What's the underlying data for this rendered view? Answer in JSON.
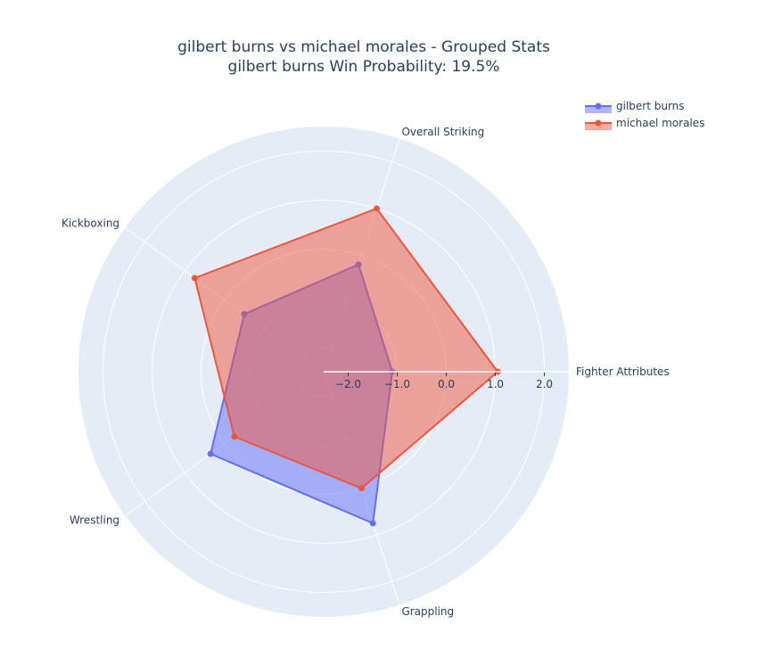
{
  "chart_data": {
    "type": "radar",
    "title_line1": "gilbert burns vs michael morales - Grouped Stats",
    "title_line2": "gilbert burns Win Probability: 19.5%",
    "categories": [
      "Fighter Attributes",
      "Overall Striking",
      "Kickboxing",
      "Wrestling",
      "Grappling"
    ],
    "radial_range": [
      -2.5,
      2.5
    ],
    "radial_ticks": [
      -2.0,
      -1.0,
      0.0,
      1.0,
      2.0
    ],
    "radial_tick_labels": [
      "−2.0",
      "−1.0",
      "0.0",
      "1.0",
      "2.0"
    ],
    "grid": true,
    "legend_position": "top-right",
    "series": [
      {
        "name": "gilbert burns",
        "color": "#636efa",
        "fill": "rgba(99,110,250,0.5)",
        "values": [
          -1.1,
          -0.2,
          -0.5,
          0.35,
          0.75
        ]
      },
      {
        "name": "michael morales",
        "color": "#ef553b",
        "fill": "rgba(239,85,59,0.5)",
        "values": [
          1.05,
          1.0,
          0.75,
          -0.25,
          0.0
        ]
      }
    ]
  }
}
